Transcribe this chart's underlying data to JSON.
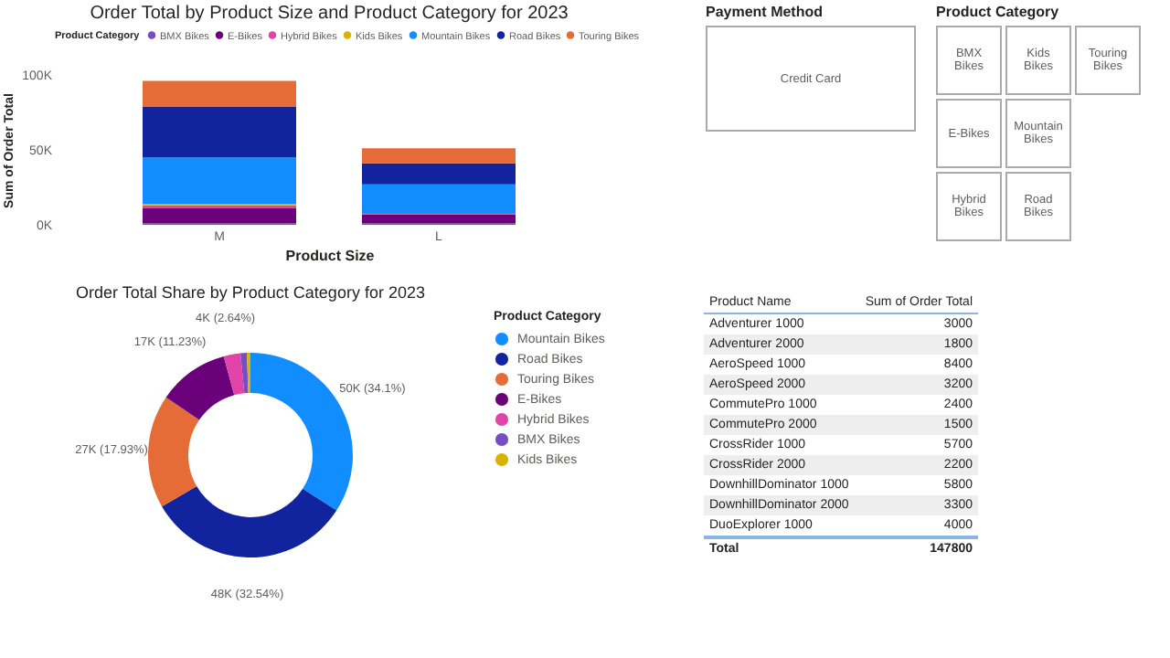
{
  "chart_data": [
    {
      "type": "bar",
      "title": "Order Total by Product Size and Product Category for 2023",
      "xlabel": "Product Size",
      "ylabel": "Sum of Order Total",
      "legend_title": "Product Category",
      "legend": "top",
      "stacked": true,
      "categories": [
        "M",
        "L"
      ],
      "ylim": [
        0,
        100000
      ],
      "yticks": [
        {
          "value": 0,
          "label": "0K"
        },
        {
          "value": 50000,
          "label": "50K"
        },
        {
          "value": 100000,
          "label": "100K"
        }
      ],
      "series": [
        {
          "name": "BMX Bikes",
          "color": "#744ec2",
          "values": [
            1000,
            1000
          ]
        },
        {
          "name": "E-Bikes",
          "color": "#6b007b",
          "values": [
            10000,
            6000
          ]
        },
        {
          "name": "Hybrid Bikes",
          "color": "#e044a7",
          "values": [
            2000,
            1000
          ]
        },
        {
          "name": "Kids Bikes",
          "color": "#d9b300",
          "values": [
            1000,
            0
          ]
        },
        {
          "name": "Mountain Bikes",
          "color": "#118dff",
          "values": [
            31000,
            19000
          ]
        },
        {
          "name": "Road Bikes",
          "color": "#12239e",
          "values": [
            34000,
            14000
          ]
        },
        {
          "name": "Touring Bikes",
          "color": "#e66c37",
          "values": [
            17000,
            10000
          ]
        }
      ]
    },
    {
      "type": "other",
      "title": "Payment Method",
      "categories": [
        "Credit Card"
      ]
    },
    {
      "type": "other",
      "title": "Product Category",
      "categories": [
        "BMX Bikes",
        "E-Bikes",
        "Hybrid Bikes",
        "Kids Bikes",
        "Mountain Bikes",
        "Road Bikes",
        "Touring Bikes"
      ]
    },
    {
      "type": "donut",
      "title": "Order Total Share by Product Category for 2023",
      "legend_title": "Product Category",
      "legend": "right",
      "categories": [
        "Mountain Bikes",
        "Road Bikes",
        "Touring Bikes",
        "E-Bikes",
        "Hybrid Bikes",
        "BMX Bikes",
        "Kids Bikes"
      ],
      "values": [
        34.1,
        32.54,
        17.93,
        11.23,
        2.64,
        1.0,
        0.56
      ],
      "colors": [
        "#118dff",
        "#12239e",
        "#e66c37",
        "#6b007b",
        "#e044a7",
        "#744ec2",
        "#d9b300"
      ],
      "value_labels": [
        "50K (34.1%)",
        "48K (32.54%)",
        "27K (17.93%)",
        "17K (11.23%)",
        "4K (2.64%)",
        null,
        null
      ]
    },
    {
      "type": "other",
      "data_labels": true,
      "xlabel": "Product Name",
      "ylabel": "Sum of Order Total",
      "categories": [
        "Adventurer 1000",
        "Adventurer 2000",
        "AeroSpeed 1000",
        "AeroSpeed 2000",
        "CommutePro 1000",
        "CommutePro 2000",
        "CrossRider 1000",
        "CrossRider 2000",
        "DownhillDominator 1000",
        "DownhillDominator 2000",
        "DuoExplorer 1000"
      ],
      "values": [
        3000,
        1800,
        8400,
        3200,
        2400,
        1500,
        5700,
        2200,
        5800,
        3300,
        4000
      ],
      "annotations": [
        "Total",
        "147800"
      ]
    }
  ]
}
